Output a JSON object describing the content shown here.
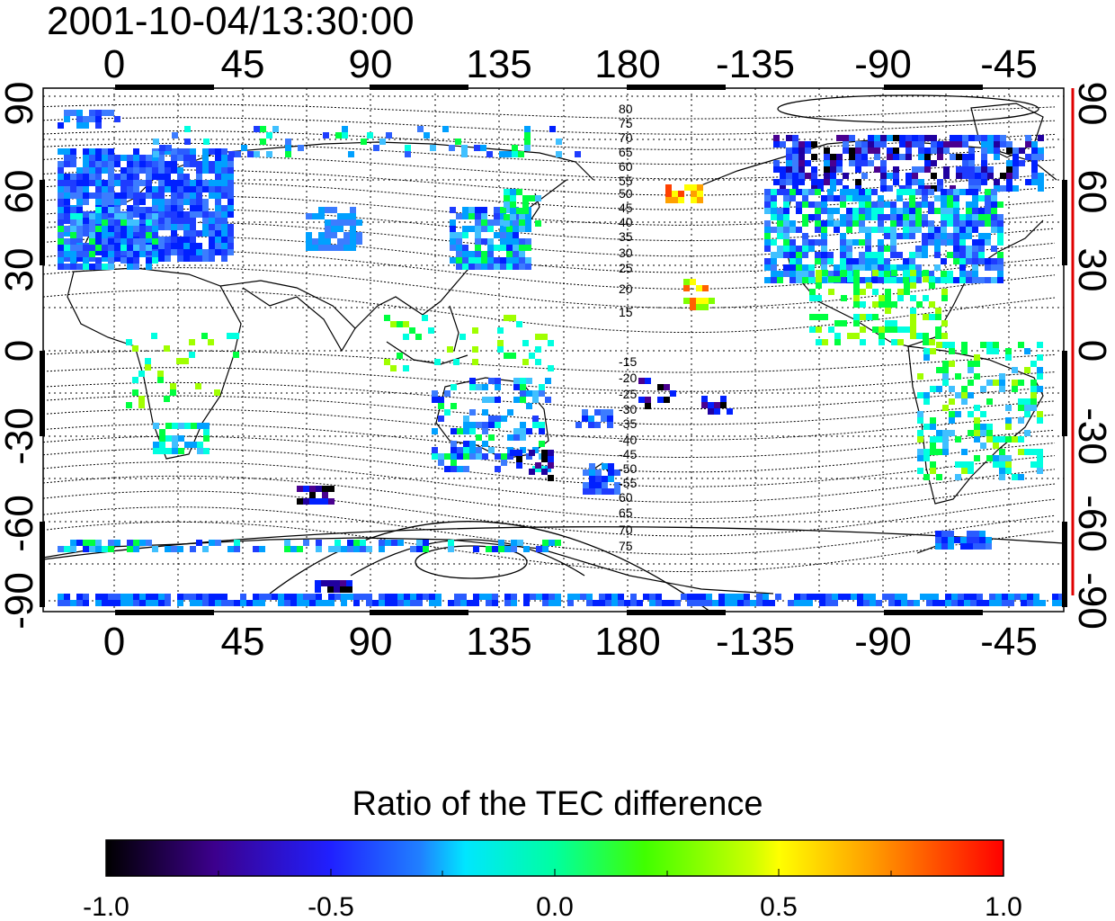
{
  "title": "2001-10-04/13:30:00",
  "map": {
    "top_ticks": [
      "0",
      "45",
      "90",
      "135",
      "180",
      "-135",
      "-90",
      "-45"
    ],
    "bottom_ticks": [
      "0",
      "45",
      "90",
      "135",
      "180",
      "-135",
      "-90",
      "-45"
    ],
    "left_ticks": [
      "90",
      "60",
      "30",
      "0",
      "-30",
      "-60",
      "-90"
    ],
    "right_ticks": [
      "90",
      "60",
      "30",
      "0",
      "-30",
      "-60",
      "-90"
    ],
    "contour_labels_north": [
      "80",
      "75",
      "70",
      "65",
      "60",
      "55",
      "50",
      "45",
      "40",
      "35",
      "30",
      "25",
      "20",
      "15"
    ],
    "contour_labels_south": [
      "-15",
      "-20",
      "-25",
      "-30",
      "-35",
      "-40",
      "-45",
      "-50",
      "-55",
      "60",
      "65",
      "70",
      "75"
    ]
  },
  "colorbar": {
    "title": "Ratio of the TEC difference",
    "ticks": [
      "-1.0",
      "-0.5",
      "0.0",
      "0.5",
      "1.0"
    ],
    "range": [
      -1.0,
      1.0
    ],
    "colors": [
      "#000000",
      "#4a0090",
      "#0020ff",
      "#00a0ff",
      "#00ffe0",
      "#00ff40",
      "#a0ff00",
      "#ffff00",
      "#ffa000",
      "#ff0000"
    ]
  }
}
